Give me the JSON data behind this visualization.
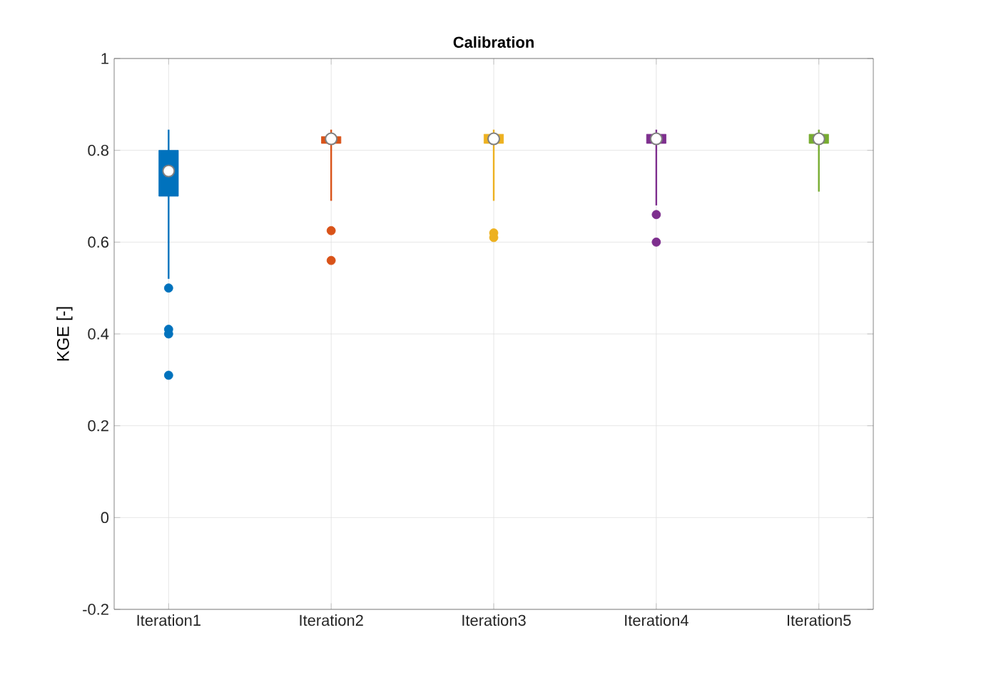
{
  "chart_data": {
    "type": "box",
    "title": "Calibration",
    "ylabel": "KGE [-]",
    "categories": [
      "Iteration1",
      "Iteration2",
      "Iteration3",
      "Iteration4",
      "Iteration5"
    ],
    "colors": [
      "#0072bd",
      "#d95319",
      "#edb120",
      "#7e2f8e",
      "#77ac30"
    ],
    "boxes": [
      {
        "low": 0.52,
        "q1": 0.7,
        "median": 0.755,
        "q3": 0.8,
        "high": 0.845,
        "outliers": [
          0.5,
          0.41,
          0.4,
          0.31
        ]
      },
      {
        "low": 0.69,
        "q1": 0.815,
        "median": 0.825,
        "q3": 0.83,
        "high": 0.845,
        "outliers": [
          0.625,
          0.56
        ]
      },
      {
        "low": 0.69,
        "q1": 0.815,
        "median": 0.825,
        "q3": 0.835,
        "high": 0.845,
        "outliers": [
          0.62,
          0.61
        ]
      },
      {
        "low": 0.68,
        "q1": 0.815,
        "median": 0.825,
        "q3": 0.835,
        "high": 0.845,
        "outliers": [
          0.66,
          0.6
        ]
      },
      {
        "low": 0.71,
        "q1": 0.815,
        "median": 0.825,
        "q3": 0.835,
        "high": 0.845
      }
    ],
    "ylim": [
      -0.2,
      1
    ],
    "yticks": [
      -0.2,
      0,
      0.2,
      0.4,
      0.6,
      0.8,
      1
    ],
    "grid": true,
    "marker": "circle"
  }
}
